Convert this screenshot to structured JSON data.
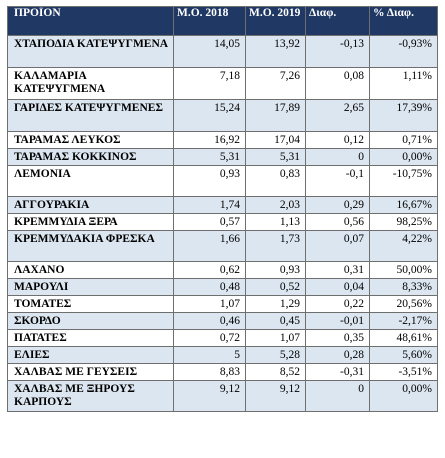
{
  "headers": {
    "product": "ΠΡΟΪΟΝ",
    "avg2018": "Μ.Ο. 2018",
    "avg2019": "Μ.Ο. 2019",
    "diff": "Διαφ.",
    "pct": "% Διαφ."
  },
  "rows": [
    {
      "name": "ΧΤΑΠΟΔΙΑ ΚΑΤΕΨΥΓΜΕΝΑ",
      "m2018": "14,05",
      "m2019": "13,92",
      "diff": "-0,13",
      "pct": "-0,93%"
    },
    {
      "name": "ΚΑΛΑΜΑΡΙΑ ΚΑΤΕΨΥΓΜΕΝΑ",
      "m2018": "7,18",
      "m2019": "7,26",
      "diff": "0,08",
      "pct": "1,11%"
    },
    {
      "name": "ΓΑΡΙΔΕΣ ΚΑΤΕΨΥΓΜΕΝΕΣ",
      "m2018": "15,24",
      "m2019": "17,89",
      "diff": "2,65",
      "pct": "17,39%"
    },
    {
      "name": "ΤΑΡΑΜΑΣ ΛΕΥΚΟΣ",
      "m2018": "16,92",
      "m2019": "17,04",
      "diff": "0,12",
      "pct": "0,71%"
    },
    {
      "name": "ΤΑΡΑΜΑΣ ΚΟΚΚΙΝΟΣ",
      "m2018": "5,31",
      "m2019": "5,31",
      "diff": "0",
      "pct": "0,00%"
    },
    {
      "name": "ΛΕΜΟΝΙΑ",
      "m2018": "0,93",
      "m2019": "0,83",
      "diff": "-0,1",
      "pct": "-10,75%"
    },
    {
      "name": "ΑΓΓΟΥΡΑΚΙΑ",
      "m2018": "1,74",
      "m2019": "2,03",
      "diff": "0,29",
      "pct": "16,67%"
    },
    {
      "name": "ΚΡΕΜΜΥΔΙΑ ΞΕΡΑ",
      "m2018": "0,57",
      "m2019": "1,13",
      "diff": "0,56",
      "pct": "98,25%"
    },
    {
      "name": "ΚΡΕΜΜΥΔΑΚΙΑ ΦΡΕΣΚΑ",
      "m2018": "1,66",
      "m2019": "1,73",
      "diff": "0,07",
      "pct": "4,22%"
    },
    {
      "name": "ΛΑΧΑΝΟ",
      "m2018": "0,62",
      "m2019": "0,93",
      "diff": "0,31",
      "pct": "50,00%"
    },
    {
      "name": "ΜΑΡΟΥΛΙ",
      "m2018": "0,48",
      "m2019": "0,52",
      "diff": "0,04",
      "pct": "8,33%"
    },
    {
      "name": "ΤΟΜΑΤΕΣ",
      "m2018": "1,07",
      "m2019": "1,29",
      "diff": "0,22",
      "pct": "20,56%"
    },
    {
      "name": "ΣΚΟΡΔΟ",
      "m2018": "0,46",
      "m2019": "0,45",
      "diff": "-0,01",
      "pct": "-2,17%"
    },
    {
      "name": "ΠΑΤΑΤΕΣ",
      "m2018": "0,72",
      "m2019": "1,07",
      "diff": "0,35",
      "pct": "48,61%"
    },
    {
      "name": "ΕΛΙΕΣ",
      "m2018": "5",
      "m2019": "5,28",
      "diff": "0,28",
      "pct": "5,60%"
    },
    {
      "name": "ΧΑΛΒΑΣ ΜΕ ΓΕΥΣΕΙΣ",
      "m2018": "8,83",
      "m2019": "8,52",
      "diff": "-0,31",
      "pct": "-3,51%"
    },
    {
      "name": "ΧΑΛΒΑΣ ΜΕ ΞΗΡΟΥΣ ΚΑΡΠΟΥΣ",
      "m2018": "9,12",
      "m2019": "9,12",
      "diff": "0",
      "pct": "0,00%"
    }
  ],
  "colors": {
    "header_bg": "#1f3864",
    "header_text": "#ffffff",
    "stripe": "#dce6f0",
    "border": "#6f6f6f"
  }
}
